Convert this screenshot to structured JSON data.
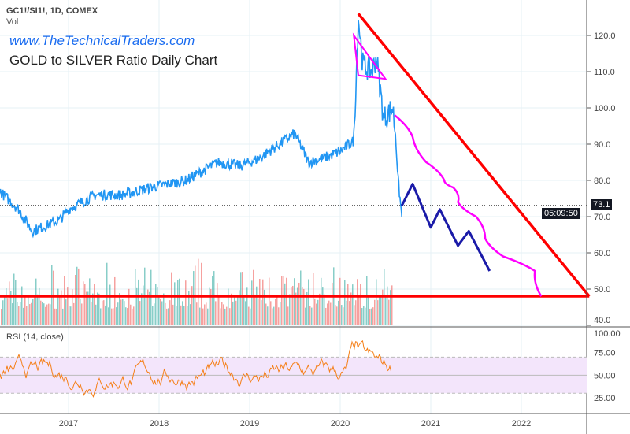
{
  "header": {
    "symbol": "GC1!/SI1!, 1D, COMEX",
    "volume_label": "Vol",
    "website": "www.TheTechnicalTraders.com",
    "title": "GOLD to SILVER Ratio Daily Chart",
    "rsi_label": "RSI (14, close)",
    "last_price": "73.1",
    "countdown": "05:09:50"
  },
  "colors": {
    "price": "#2196f3",
    "projection_blue": "#1a1aa8",
    "projection_magenta": "#ff00ff",
    "trend_red": "#ff0000",
    "rsi": "#f57f17",
    "rsi_band": "#f3e5fb"
  },
  "chart_data": {
    "type": "line",
    "title": "GOLD to SILVER Ratio Daily Chart",
    "x_ticks": [
      "2017",
      "2018",
      "2019",
      "2020",
      "2021",
      "2022"
    ],
    "y_ticks": [
      "120.0",
      "110.0",
      "100.0",
      "90.0",
      "80.0",
      "70.0",
      "60.0",
      "50.0",
      "40.0"
    ],
    "rsi_ticks": [
      "100.00",
      "75.00",
      "50.00",
      "25.00"
    ],
    "ylim": [
      40,
      126
    ],
    "price_waypoints": [
      [
        2016.24,
        77
      ],
      [
        2016.45,
        72
      ],
      [
        2016.6,
        66
      ],
      [
        2016.9,
        69
      ],
      [
        2017.0,
        72
      ],
      [
        2017.3,
        76
      ],
      [
        2017.6,
        76
      ],
      [
        2017.9,
        78
      ],
      [
        2018.3,
        80
      ],
      [
        2018.65,
        85
      ],
      [
        2018.9,
        84
      ],
      [
        2019.1,
        86
      ],
      [
        2019.5,
        93
      ],
      [
        2019.65,
        85
      ],
      [
        2019.8,
        86
      ],
      [
        2020.0,
        88
      ],
      [
        2020.15,
        91
      ],
      [
        2020.2,
        125
      ],
      [
        2020.25,
        112
      ],
      [
        2020.35,
        110
      ],
      [
        2020.4,
        114
      ],
      [
        2020.48,
        97
      ],
      [
        2020.58,
        100
      ],
      [
        2020.61,
        93
      ],
      [
        2020.64,
        80
      ],
      [
        2020.68,
        70
      ]
    ],
    "blue_projection": [
      [
        2020.68,
        73
      ],
      [
        2020.8,
        79
      ],
      [
        2021.0,
        67
      ],
      [
        2021.1,
        72
      ],
      [
        2021.3,
        62
      ],
      [
        2021.42,
        66
      ],
      [
        2021.65,
        55
      ]
    ],
    "magenta_projection": [
      [
        2020.6,
        98
      ],
      [
        2020.8,
        92
      ],
      [
        2020.95,
        85
      ],
      [
        2021.15,
        80
      ],
      [
        2021.25,
        78
      ],
      [
        2021.3,
        74
      ],
      [
        2021.5,
        70
      ],
      [
        2021.6,
        64
      ],
      [
        2021.8,
        59
      ],
      [
        2022.15,
        55
      ],
      [
        2022.22,
        48
      ]
    ],
    "magenta_triangle": [
      [
        2020.15,
        120
      ],
      [
        2020.5,
        108
      ],
      [
        2020.2,
        109
      ]
    ],
    "red_trend": [
      [
        2020.2,
        126
      ],
      [
        2022.75,
        48
      ]
    ],
    "red_support": [
      [
        2016.24,
        48
      ],
      [
        2022.75,
        48
      ]
    ],
    "rsi_band": [
      30,
      70
    ]
  }
}
